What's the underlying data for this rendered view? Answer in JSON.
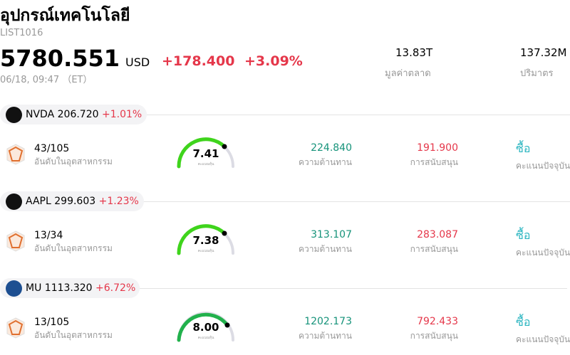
{
  "header": {
    "title": "อุปกรณ์เทคโนโลยี",
    "code": "LIST1016",
    "price": "5780.551",
    "currency": "USD",
    "change": "+178.400",
    "change_percent": "+3.09%",
    "datetime": "06/18, 09:47 （ET）"
  },
  "stats": [
    {
      "value": "13.83T",
      "label": "มูลค่าตลาด"
    },
    {
      "value": "137.32M",
      "label": "ปริมาตร"
    }
  ],
  "stocks": [
    {
      "ticker": "NVDA",
      "price": "206.720",
      "change": "+1.01%",
      "rank": "43/105",
      "rank_label": "อันดับในอุตสาหกรรม",
      "score": "7.41",
      "score_label": "คะแนนหุ้น",
      "resistance": "224.840",
      "resistance_label": "ความต้านทาน",
      "support": "191.900",
      "support_label": "การสนับสนุน",
      "rating": "ซื้อ",
      "rating_label": "คะแนนปัจจุบัน"
    },
    {
      "ticker": "AAPL",
      "price": "299.603",
      "change": "+1.23%",
      "rank": "13/34",
      "rank_label": "อันดับในอุตสาหกรรม",
      "score": "7.38",
      "score_label": "คะแนนหุ้น",
      "resistance": "313.107",
      "resistance_label": "ความต้านทาน",
      "support": "283.087",
      "support_label": "การสนับสนุน",
      "rating": "ซื้อ",
      "rating_label": "คะแนนปัจจุบัน"
    },
    {
      "ticker": "MU",
      "price": "1113.320",
      "change": "+6.72%",
      "rank": "13/105",
      "rank_label": "อันดับในอุตสาหกรรม",
      "score": "8.00",
      "score_label": "คะแนนหุ้น",
      "resistance": "1202.173",
      "resistance_label": "ความต้านทาน",
      "support": "792.433",
      "support_label": "การสนับสนุน",
      "rating": "ซื้อ",
      "rating_label": "คะแนนปัจจุบัน"
    }
  ]
}
